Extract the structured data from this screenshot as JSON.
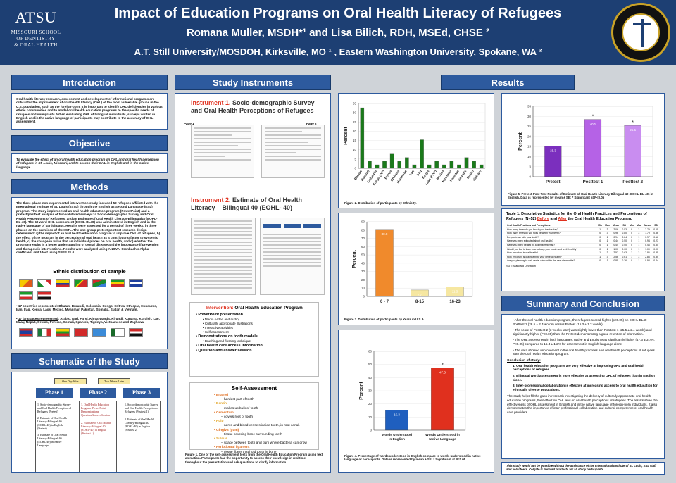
{
  "header": {
    "logo_name": "ATSU",
    "logo_school": [
      "MISSOURI SCHOOL",
      "OF DENTISTRY",
      "& ORAL HEALTH"
    ],
    "title": "Impact of Education Programs on Oral Health Literacy of Refugees",
    "authors": "Romana Muller, MSDH*¹ and Lisa Bilich, RDH, MSEd, CHSE ²",
    "affiliation": "A.T. Still University/MOSDOH, Kirksville, MO ¹ , Eastern Washington University, Spokane, WA ²"
  },
  "sections": {
    "introduction": "Introduction",
    "objective": "Objective",
    "methods": "Methods",
    "schematic": "Schematic of the Study",
    "instruments": "Study Instruments",
    "results": "Results",
    "summary": "Summary and Conclusion"
  },
  "introduction_text": "Oral health literacy research, assessment and development of informational programs are critical for the improvement of oral health literacy (OHL) of the most vulnerable groups in the U.S. population, such as the foreign-born. It is important to identify OHL deficiencies in various ethnic communities and to model oral health education programs to the specific needs of refugees and immigrants. When evaluating OHL of bilingual individuals, surveys written in English and in the native language of participants may contribute to the accuracy of OHL assessment.",
  "objective_text": "To evaluate the effect of an oral health education program on OHL and oral health perception of refugees in St. Louis, Missouri, and to assess their OHL in English and in the native language.",
  "methods_text": "The three-phase non-experimental intervention study included 52 refugees affiliated with the International Institute of St. Louis (IISTL) through the English as Second Language (ESL) program. The study implemented an oral health education program (PowerPoint) and a pretest/posttest analysis of two validated surveys: a Socio-demographic Survey and Oral Health Perceptions of Refugees, and an Estimate of Oral Health Literacy-Bilingual40 (EOHL-BL-40). The 40 word OHL assessment (EOHL-BL40) was administered in English and in the native language of participants. Results were assessed for a period of three weeks, in three phases on the premises of the IISTL. The one-group pretest/posttest research design determined: a) the impact of an oral health education program to improve OHL of refugees, b) the effect of the program in the perception of oral health as a contributing factor to systemic health, c) the change in value that an individual places on oral health, and d) whether the program results in a better understanding of dental disease and the importance if prevention and therapeutic interventions. Results were analyzed using ANOVA, Cronbach's Alpha coefficient and t-test using SPSS 21.0.",
  "ethnic": {
    "title": "Ethnic distribution of sample",
    "countries_label": "17 countries represented",
    "countries_text": ": Bhutan, Burundi, Colombia, Congo, Eritrea, Ethiopia, Honduras, Iran, Iraq, Kenya, Laos, Mexico, Myanmar, Pakistan, Somalia, Sudan & Vietnam.",
    "languages_label": "17 languages represented",
    "languages_text": ": Arabic, Dari, Farsi, Kinyarwanda, Kirundi, Kunama, Kurdish, Lao, Maay, Nepali, Oromo, Persian, Somali, Spanish, Tigrinya, Vietnamese and Zaghawa."
  },
  "schematic": {
    "tags": [
      "One Day After",
      "Two Weeks Later"
    ],
    "phases": [
      "Phase 1",
      "Phase 2",
      "Phase 3"
    ],
    "phase1": [
      "1. Socio-demographic Survey and Oral Health Perception of Refugees (Pretest)",
      "2. Estimate of Oral Health Literacy-Bilingual 40 (EOHL-40) in English (Pretest)",
      "3. Estimate of Oral Health Literacy-Bilingual 40 (EOHL-40) in Native Language"
    ],
    "phase2": [
      "1. Oral Health Education Program (PowerPoint) Demonstrations Question/Answer Session",
      "2. Estimate of Oral Health Literacy-Bilingual 40 (EOHL-40) in English (Posttest 1)"
    ],
    "phase3": [
      "1. Socio-demographic Survey and Oral Health Perception of Refugees (Posttest 1)",
      "2. Estimate of Oral Health Literacy-Bilingual 40 (EOHL-40) in English (Posttest 2)"
    ]
  },
  "instruments": {
    "inst1_label": "Instrument 1.",
    "inst1_title": " Socio-demographic Survey and Oral Health Perceptions of Refugees",
    "inst1_page1": "Page 1",
    "inst1_page2": "Page 2",
    "inst2_label": "Instrument 2.",
    "inst2_title": " Estimate of Oral Health Literacy – Bilingual 40 (EOHL- 40)",
    "intervention_label": "Intervention:",
    "intervention_title": " Oral Health Education Program",
    "intervention_items": [
      {
        "main": "PowerPoint presentation",
        "subs": [
          "Media (video and audio)",
          "Culturally appropriate illustrations",
          "Interactive activities",
          "Self assessment"
        ]
      },
      {
        "main": "Demonstrations on tooth models",
        "subs": [
          "Brushing and flossing technique"
        ]
      },
      {
        "main": "Oral health care access information",
        "subs": []
      },
      {
        "main": "Question and answer session",
        "subs": []
      }
    ],
    "self_assessment_title": "Self-Assessment",
    "self_assessment_items": [
      {
        "label": "Enamel",
        "desc": "hardest part of tooth"
      },
      {
        "label": "Dentin",
        "desc": "makes up bulk of tooth"
      },
      {
        "label": "Cementum",
        "desc": "covers root of tooth"
      },
      {
        "label": "Pulp",
        "desc": "nerve and blood vessels inside tooth, in root canal."
      },
      {
        "label": "Gingiva (gum)",
        "desc": "tissue covering bone surrounding teeth"
      },
      {
        "label": "Sulcus",
        "desc": "space between tooth and gum where bacteria can grow"
      },
      {
        "label": "Periodontal ligament",
        "desc": "tissue fibers that hold tooth in bone"
      }
    ],
    "figure1_caption": "Figure 1. One of the self-assessment tests from the Oral Health Education Program using text animation. Participants had the opportunity to assess their knowledge in real time, throughout the presentation and ask questions to clarify information."
  },
  "chart_data": [
    {
      "type": "bar",
      "title": "",
      "xlabel": "",
      "ylabel": "Percent",
      "ylim": [
        0,
        35
      ],
      "yticks": [
        0,
        5,
        10,
        15,
        20,
        25,
        30,
        35
      ],
      "categories": [
        "Bhutan",
        "Burundi",
        "Colombia",
        "Congo (DR)",
        "Eritrea",
        "Ethiopia",
        "Honduras",
        "Iran",
        "Iraq",
        "Kenya",
        "Laos (PDR)",
        "Mexico",
        "Myanmar",
        "Pakistan",
        "Somalia",
        "Sudan",
        "Vietnam"
      ],
      "values": [
        32.7,
        3.8,
        1.9,
        3.8,
        7.7,
        3.8,
        5.8,
        1.9,
        15.4,
        1.9,
        3.8,
        1.9,
        3.8,
        1.9,
        5.8,
        3.8,
        1.9
      ],
      "color": "#1a7a1a",
      "caption": "Figure 2. Distribution of participants by Ethnicity."
    },
    {
      "type": "bar",
      "title": "",
      "xlabel": "",
      "ylabel": "Percent",
      "ylim": [
        0,
        90
      ],
      "yticks": [
        0,
        10,
        20,
        30,
        40,
        50,
        60,
        70,
        80,
        90
      ],
      "categories": [
        "0 - 7",
        "8-15",
        "16-23"
      ],
      "values": [
        80.8,
        7.7,
        11.5
      ],
      "data_labels": [
        "80.8",
        "7.7",
        "11.5"
      ],
      "colors": [
        "#f08a2c",
        "#f6e7a1",
        "#f6e7a1"
      ],
      "caption": "Figure 3. Distribution of participants by Years in U.S.A."
    },
    {
      "type": "bar",
      "title": "",
      "xlabel": "",
      "ylabel": "Percent",
      "ylim": [
        0,
        60
      ],
      "yticks": [
        0,
        10,
        20,
        30,
        40,
        50,
        60
      ],
      "categories": [
        "Words Understood in English",
        "Words Understood in Native Language"
      ],
      "values": [
        15.3,
        47.3
      ],
      "data_labels": [
        "15.3",
        "47.3"
      ],
      "colors": [
        "#1f5fbf",
        "#e0301e"
      ],
      "significance": [
        "",
        "*"
      ],
      "caption": "Figure 4. Percentage of words understood in English compare to words understood in native language of participants. Data is represented by mean ± SE; * Significant at P<0.05."
    },
    {
      "type": "bar",
      "title": "",
      "xlabel": "",
      "ylabel": "Percent",
      "ylim": [
        0,
        35
      ],
      "yticks": [
        0,
        5,
        10,
        15,
        20,
        25,
        30,
        35
      ],
      "categories": [
        "Pretest",
        "Posttest 1",
        "Posttest 2"
      ],
      "values": [
        15.3,
        28.5,
        25.5
      ],
      "data_labels": [
        "15.3",
        "28.5",
        "25.5"
      ],
      "colors": [
        "#7b2fbe",
        "#b562e6",
        "#c98df0"
      ],
      "significance": [
        "",
        "*",
        "*"
      ],
      "caption": "Figure 5. Pretest-Post Test Results of Estimate of Oral Health Literacy Bilingual-40 (EOHL-BL-40) in English. Data is represented by mean ± SE; * Significant at P<0.05"
    }
  ],
  "table": {
    "title_prefix": "Table 1. Descriptive Statistics for the Oral Health Practices and Perceptions of Refugees (N=52) ",
    "before": "Before",
    "and": " and ",
    "after": "After",
    "title_suffix": " the Oral Health Education Program.",
    "columns": [
      "Oral Health Practices and Perceptions",
      "Min",
      "Max",
      "Mean",
      "SD",
      "Min",
      "Max",
      "Mean",
      "SD"
    ],
    "rows": [
      [
        "How many times do you brush your teeth a day?",
        "1",
        "3",
        "2.06",
        "0.53",
        "0",
        "3",
        "2.79",
        "0.65"
      ],
      [
        "How many times do you floss between your teeth?",
        "0",
        "3",
        "0.96",
        "0.80",
        "0",
        "3",
        "1.79",
        "0.86"
      ],
      [
        "Do you brush with your tooth?",
        "0",
        "1",
        "0.94",
        "0.24",
        "0",
        "1",
        "0.97",
        "0.16"
      ],
      [
        "Have you been educated about oral health?",
        "0",
        "1",
        "0.44",
        "0.50",
        "0",
        "1",
        "0.94",
        "0.23"
      ],
      [
        "Have you been treated by a dental hygienist?",
        "0",
        "1",
        "0.44",
        "0.50",
        "0",
        "1",
        "0.46",
        "0.50"
      ],
      [
        "Would you like to learn how to keep your mouth and teeth healthy?",
        "0",
        "1",
        "1.00",
        "0.00",
        "0",
        "1",
        "1.00",
        "0.00"
      ],
      [
        "How important is oral health?",
        "1",
        "3",
        "2.52",
        "0.63",
        "1",
        "3",
        "2.86",
        "0.35"
      ],
      [
        "How important is oral health to your general health?",
        "1",
        "3",
        "2.56",
        "0.61",
        "1",
        "3",
        "2.86",
        "0.35"
      ],
      [
        "Are you planning to visit dental clinic within the next six months?",
        "0",
        "1",
        "0.85",
        "0.36",
        "0",
        "1",
        "0.94",
        "0.24"
      ]
    ],
    "note": "SD = Standard Deviation"
  },
  "summary": {
    "bullets": [
      "After the oral health education program, the refugees scored higher (p<0.05) on EOHL-BL40 Posttest 1 (28.5 ± 2.4 words) versus Pretest (15.3 ± 1.2 words).",
      "The score of Posttest 2 (3 weeks later) was slightly lower than Posttest 1 (25.5 ± 2.4 words) and significantly higher (P<0.05) than the Pretest demonstrating a good retention of information.",
      "The OHL assessment in both languages, native and English was significantly higher (47.3 ± 3.7%, P<0.05) compared to 15.3 ± 1.2% for assessment in English language alone.",
      "The data showed improvement in the oral health practices and oral health perceptions of refugees after the oral health education program."
    ],
    "conclusion_head": "Conclusion of study:",
    "conclusions": [
      "1.   Oral health education programs are very effective at improving OHL and oral health perceptions of refugees.",
      "2.   Bilingual word assessment is more effective at assessing OHL of refugees than in English alone.",
      "3.   Inter-professional collaboration is effective at increasing access to oral health education for ethnically diverse populations."
    ],
    "closing": "The study helps fill the gaps in research investigating the delivery of culturally appropriate oral health education programs, their effect on OHL and on oral health perceptions of refugees. The results show the effectiveness of OHL assessment in English and in the native language of foreign-born individuals. It also demonstrates the importance of inter-professional collaboration and cultural competence of oral health care providers.",
    "acknowledgement": "This study would not be possible without the assistance of the International Institute of St. Louis, ESL staff and volunteers. Colgate ® donated products for all study participants."
  }
}
